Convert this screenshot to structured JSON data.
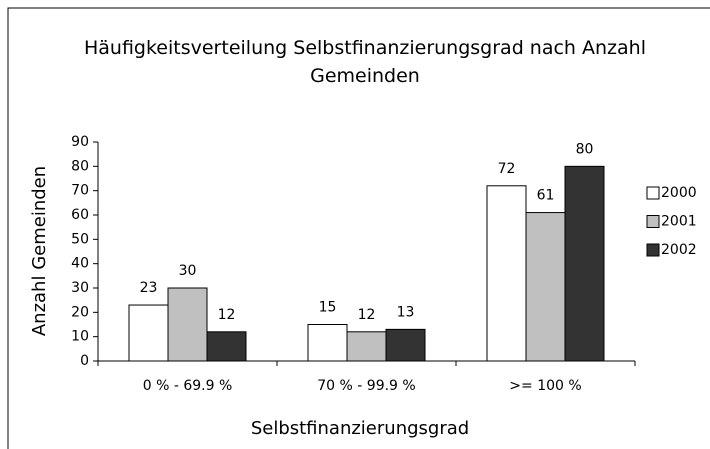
{
  "chart_data": {
    "type": "bar",
    "title": "Häufigkeitsverteilung Selbstfinanzierungsgrad nach Anzahl Gemeinden",
    "xlabel": "Selbstfinanzierungsgrad",
    "ylabel": "Anzahl Gemeinden",
    "categories": [
      "0 % - 69.9 %",
      "70 %  - 99.9 %",
      ">= 100 %"
    ],
    "series": [
      {
        "name": "2000",
        "color": "#ffffff",
        "values": [
          23,
          15,
          72
        ]
      },
      {
        "name": "2001",
        "color": "#c0c0c0",
        "values": [
          30,
          12,
          61
        ]
      },
      {
        "name": "2002",
        "color": "#333333",
        "values": [
          12,
          13,
          80
        ]
      }
    ],
    "ylim": [
      0,
      90
    ],
    "yticks": [
      0,
      10,
      20,
      30,
      40,
      50,
      60,
      70,
      80,
      90
    ],
    "legend": "right",
    "grid": false
  }
}
